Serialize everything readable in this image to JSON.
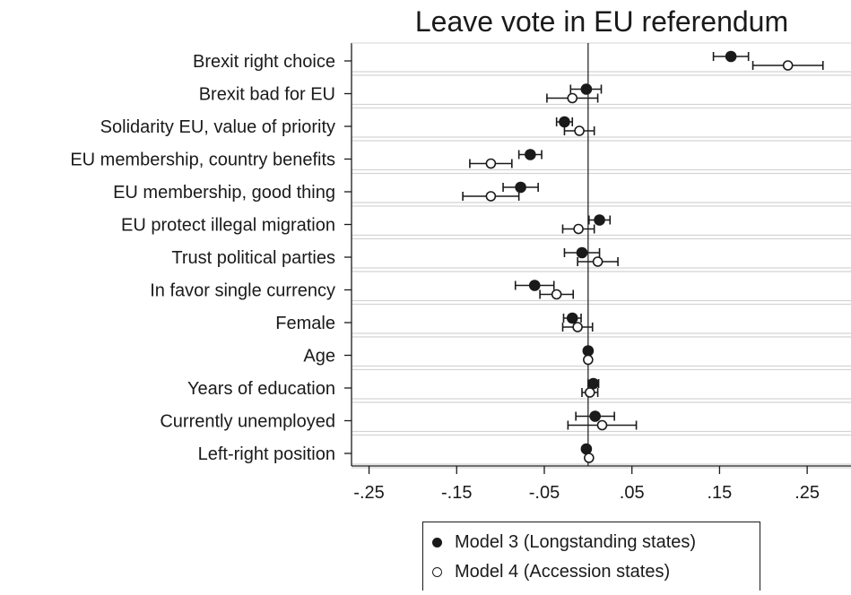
{
  "chart_data": {
    "type": "scatter",
    "subtype": "coefficient-plot",
    "orientation": "horizontal",
    "title": "Leave vote in EU referendum",
    "xlabel": "",
    "ylabel": "",
    "xlim": [
      -0.27,
      0.3
    ],
    "xticks": [
      -0.25,
      -0.15,
      -0.05,
      0.05,
      0.15,
      0.25
    ],
    "xtick_labels": [
      "-.25",
      "-.15",
      "-.05",
      ".05",
      ".15",
      ".25"
    ],
    "reference_line": 0,
    "grid": true,
    "legend_position": "bottom-right",
    "categories": [
      "Brexit right choice",
      "Brexit bad for EU",
      "Solidarity EU, value of priority",
      "EU membership, country benefits",
      "EU membership, good thing",
      "EU protect illegal migration",
      "Trust political parties",
      "In favor single currency",
      "Female",
      "Age",
      "Years of education",
      "Currently unemployed",
      "Left-right position"
    ],
    "series": [
      {
        "name": "Model 3 (Longstanding states)",
        "marker": "filled-circle",
        "values": [
          0.163,
          -0.002,
          -0.027,
          -0.066,
          -0.077,
          0.013,
          -0.007,
          -0.061,
          -0.018,
          0.0,
          0.006,
          0.008,
          -0.002
        ],
        "ci_low": [
          0.143,
          -0.02,
          -0.036,
          -0.079,
          -0.097,
          0.001,
          -0.027,
          -0.083,
          -0.028,
          -0.001,
          0.0,
          -0.014,
          -0.004
        ],
        "ci_high": [
          0.183,
          0.015,
          -0.018,
          -0.053,
          -0.057,
          0.025,
          0.013,
          -0.039,
          -0.008,
          0.001,
          0.012,
          0.03,
          0.0
        ]
      },
      {
        "name": "Model 4 (Accession states)",
        "marker": "hollow-circle",
        "values": [
          0.228,
          -0.018,
          -0.01,
          -0.111,
          -0.111,
          -0.011,
          0.011,
          -0.036,
          -0.012,
          0.0,
          0.002,
          0.016,
          0.001
        ],
        "ci_low": [
          0.188,
          -0.047,
          -0.027,
          -0.135,
          -0.143,
          -0.029,
          -0.012,
          -0.055,
          -0.029,
          -0.001,
          -0.007,
          -0.023,
          -0.001
        ],
        "ci_high": [
          0.268,
          0.011,
          0.007,
          -0.087,
          -0.079,
          0.007,
          0.034,
          -0.017,
          0.005,
          0.001,
          0.011,
          0.055,
          0.003
        ]
      }
    ]
  },
  "legend": {
    "items": [
      {
        "label": "Model 3 (Longstanding states)",
        "marker": "filled"
      },
      {
        "label": "Model 4 (Accession states)",
        "marker": "hollow"
      }
    ]
  },
  "colors": {
    "ink": "#1a1a1a",
    "grid": "#d4d4d4",
    "background": "#ffffff"
  }
}
